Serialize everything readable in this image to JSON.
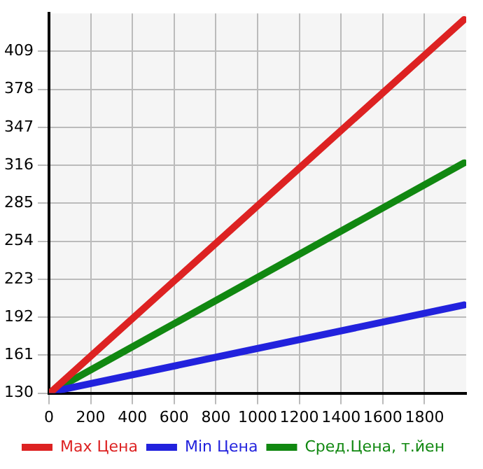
{
  "chart_data": {
    "type": "line",
    "x": [
      10,
      1990
    ],
    "series": [
      {
        "name": "Max Цена",
        "color": "#dd2222",
        "values": [
          131,
          435
        ]
      },
      {
        "name": "Min Цена",
        "color": "#2222dd",
        "values": [
          131,
          202
        ]
      },
      {
        "name": "Сред.Цена, т.йен",
        "color": "#118811",
        "values": [
          131,
          318
        ]
      }
    ],
    "xlim": [
      0,
      2000
    ],
    "xticks": [
      0,
      200,
      400,
      600,
      800,
      1000,
      1200,
      1400,
      1600,
      1800
    ],
    "ylim": [
      130,
      440
    ],
    "yticks": [
      130,
      161,
      192,
      223,
      254,
      285,
      316,
      347,
      378,
      409
    ],
    "grid": true,
    "legend": "bottom",
    "marker": "none",
    "line_style": "solid"
  }
}
